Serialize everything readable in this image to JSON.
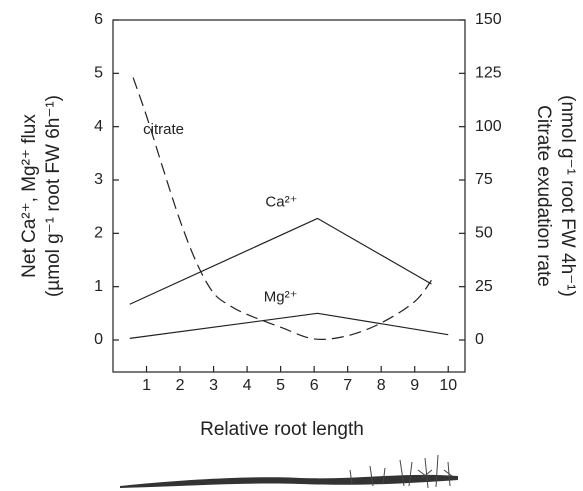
{
  "chart_data": {
    "type": "line",
    "x_label": "Relative root length",
    "y_label_line1": "Net Ca²⁺, Mg²⁺ flux",
    "y_label_line2": "(µmol g⁻¹ root FW 6h⁻¹)",
    "y2_label_line1": "Citrate exudation rate",
    "y2_label_line2": "(nmol g⁻¹ root FW 4h⁻¹)",
    "xlim": [
      0,
      10.5
    ],
    "xticks": [
      1,
      2,
      3,
      4,
      5,
      6,
      7,
      8,
      9,
      10
    ],
    "ylim": [
      -0.6,
      6
    ],
    "yticks": [
      0,
      1,
      2,
      3,
      4,
      5,
      6
    ],
    "y2lim": [
      -15,
      150
    ],
    "y2ticks": [
      0,
      25,
      50,
      75,
      100,
      125,
      150
    ],
    "series": [
      {
        "name": "Ca²⁺",
        "color": "#222222",
        "dash": false,
        "x": [
          0.5,
          6.1,
          9.5
        ],
        "values": [
          0.67,
          2.28,
          1.05
        ]
      },
      {
        "name": "Mg²⁺",
        "color": "#222222",
        "dash": false,
        "x": [
          0.5,
          6.1,
          10
        ],
        "values": [
          0.03,
          0.5,
          0.1
        ]
      },
      {
        "name": "citrate",
        "color": "#222222",
        "dash": true,
        "axis": "y2",
        "x": [
          0.6,
          1,
          1.5,
          2,
          2.5,
          3,
          3.5,
          4,
          5,
          6,
          7,
          8,
          9,
          9.5
        ],
        "values": [
          123,
          105,
          80,
          56,
          36,
          22,
          16,
          12,
          6,
          0.5,
          2,
          8,
          18,
          28
        ]
      }
    ]
  }
}
